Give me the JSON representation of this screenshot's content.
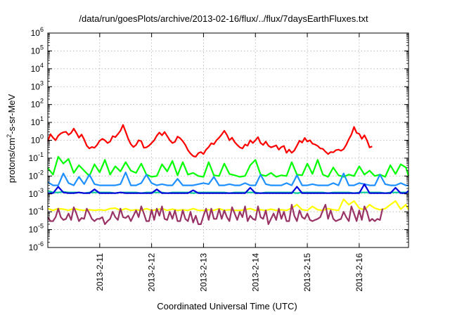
{
  "chart_data": {
    "type": "line",
    "title": "/data/run/goesPlots/archive/2013-02-16/flux/../flux/7daysEarthFluxes.txt",
    "xlabel": "Coordinated Universal Time (UTC)",
    "ylabel": "protons/cm2-s-sr-MeV",
    "ylabel_parts": {
      "before": "protons/cm",
      "superscript": "2",
      "after": "-s-sr-MeV"
    },
    "yscale": "log",
    "ylim": [
      1e-06,
      1000000.0
    ],
    "xlim_days": [
      0,
      6.95
    ],
    "x_ticks": [
      {
        "day": 1,
        "label": "2013-2-11"
      },
      {
        "day": 2,
        "label": "2013-2-12"
      },
      {
        "day": 3,
        "label": "2013-2-13"
      },
      {
        "day": 4,
        "label": "2013-2-14"
      },
      {
        "day": 5,
        "label": "2013-2-15"
      },
      {
        "day": 6,
        "label": "2013-2-16"
      }
    ],
    "y_ticks": [
      {
        "exp": -6,
        "base": "10",
        "sup": "-6"
      },
      {
        "exp": -5,
        "base": "10",
        "sup": "-5"
      },
      {
        "exp": -4,
        "base": "10",
        "sup": "-4"
      },
      {
        "exp": -3,
        "base": "10",
        "sup": "-3"
      },
      {
        "exp": -2,
        "base": "10",
        "sup": "-2"
      },
      {
        "exp": -1,
        "base": "10",
        "sup": "-1"
      },
      {
        "exp": 0,
        "base": "10",
        "sup": "0"
      },
      {
        "exp": 1,
        "base": "10",
        "sup": "1"
      },
      {
        "exp": 2,
        "base": "10",
        "sup": "2"
      },
      {
        "exp": 3,
        "base": "10",
        "sup": "3"
      },
      {
        "exp": 4,
        "base": "10",
        "sup": "4"
      },
      {
        "exp": 5,
        "base": "10",
        "sup": "5"
      },
      {
        "exp": 6,
        "base": "10",
        "sup": "6"
      }
    ],
    "grid": true,
    "series": [
      {
        "color": "#ff0000",
        "x_start": 0,
        "x_step": 0.05,
        "values": [
          0.9,
          2.2,
          1.4,
          1.0,
          1.8,
          2.4,
          2.8,
          3.0,
          2.0,
          2.6,
          4.5,
          2.6,
          1.4,
          2.1,
          1.1,
          0.5,
          0.35,
          0.42,
          0.38,
          0.55,
          0.95,
          1.2,
          1.0,
          0.7,
          0.85,
          1.7,
          1.5,
          2.2,
          3.4,
          7.2,
          3.0,
          1.2,
          0.6,
          0.42,
          0.55,
          1.0,
          0.9,
          0.38,
          0.4,
          0.5,
          0.7,
          1.0,
          1.8,
          2.7,
          1.9,
          2.9,
          1.7,
          1.0,
          0.7,
          0.82,
          1.6,
          1.3,
          0.9,
          0.55,
          0.28,
          0.18,
          0.13,
          0.12,
          0.19,
          0.22,
          0.17,
          0.3,
          0.42,
          0.68,
          0.6,
          1.0,
          1.4,
          2.1,
          3.4,
          2.0,
          1.0,
          1.4,
          0.8,
          0.55,
          0.4,
          0.35,
          0.58,
          0.5,
          1.0,
          0.7,
          1.0,
          1.5,
          0.7,
          0.55,
          0.85,
          0.5,
          0.4,
          0.45,
          0.52,
          0.3,
          0.42,
          0.48,
          0.2,
          0.3,
          0.2,
          0.27,
          0.5,
          0.95,
          0.75,
          1.35,
          0.85,
          1.0,
          0.65,
          0.58,
          0.48,
          0.35,
          0.33,
          0.23,
          0.17,
          0.22,
          0.21,
          0.28,
          0.3,
          0.26,
          0.32,
          0.55,
          1.15,
          2.1,
          5.6,
          2.6,
          2.3,
          1.2,
          1.9,
          1.0,
          0.4,
          0.45
        ]
      },
      {
        "color": "#00ff00",
        "x_start": 0,
        "x_step": 0.1,
        "values": [
          0.028,
          0.012,
          0.12,
          0.05,
          0.09,
          0.015,
          0.04,
          0.02,
          0.01,
          0.045,
          0.016,
          0.08,
          0.012,
          0.035,
          0.018,
          0.06,
          0.02,
          0.015,
          0.05,
          0.012,
          0.009,
          0.01,
          0.045,
          0.018,
          0.07,
          0.011,
          0.06,
          0.012,
          0.015,
          0.01,
          0.009,
          0.06,
          0.011,
          0.01,
          0.05,
          0.013,
          0.011,
          0.009,
          0.01,
          0.04,
          0.08,
          0.012,
          0.01,
          0.015,
          0.009,
          0.011,
          0.01,
          0.06,
          0.012,
          0.011,
          0.05,
          0.013,
          0.08,
          0.012,
          0.009,
          0.03,
          0.011,
          0.009,
          0.012,
          0.01,
          0.035,
          0.012,
          0.02,
          0.01,
          0.012,
          0.009,
          0.04,
          0.013,
          0.045,
          0.03,
          0.01
        ]
      },
      {
        "color": "#1e90ff",
        "x_start": 0,
        "x_step": 0.1,
        "values": [
          0.0045,
          0.003,
          0.003,
          0.014,
          0.004,
          0.003,
          0.009,
          0.0035,
          0.012,
          0.0035,
          0.003,
          0.003,
          0.003,
          0.003,
          0.0035,
          0.016,
          0.003,
          0.003,
          0.004,
          0.012,
          0.004,
          0.003,
          0.0035,
          0.003,
          0.003,
          0.007,
          0.003,
          0.003,
          0.003,
          0.0035,
          0.004,
          0.0035,
          0.009,
          0.003,
          0.003,
          0.0035,
          0.003,
          0.003,
          0.004,
          0.003,
          0.003,
          0.012,
          0.0035,
          0.003,
          0.003,
          0.003,
          0.004,
          0.003,
          0.011,
          0.003,
          0.003,
          0.0035,
          0.003,
          0.003,
          0.003,
          0.004,
          0.003,
          0.014,
          0.003,
          0.003,
          0.004,
          0.0035,
          0.003,
          0.003,
          0.012,
          0.0035,
          0.003,
          0.003,
          0.004,
          0.003,
          0.003
        ]
      },
      {
        "color": "#00cc99",
        "x_start": 0,
        "x_step": 0.1,
        "values": [
          0.0015,
          0.0012,
          0.0012,
          0.0013,
          0.0012,
          0.0012,
          0.0012,
          0.0011,
          0.0012,
          0.0012,
          0.0012,
          0.0012,
          0.0012,
          0.0011,
          0.0012,
          0.0012,
          0.0012,
          0.0012,
          0.0011,
          0.0012,
          0.0012,
          0.0012,
          0.0012,
          0.0011,
          0.0012,
          0.0012,
          0.0012,
          0.0012,
          0.0011,
          0.0012,
          0.0012,
          0.0012,
          0.0012,
          0.0012,
          0.0012,
          0.0011,
          0.0012,
          0.0012,
          0.0012,
          0.0012,
          0.0012,
          0.0011,
          0.0012,
          0.0012,
          0.0012,
          0.0012,
          0.0012,
          0.0012,
          0.0011,
          0.0012,
          0.0012,
          0.0012,
          0.0012,
          0.0012,
          0.0011,
          0.0012,
          0.0012,
          0.0012,
          0.0012,
          0.0011,
          0.0012,
          0.0012,
          0.0012,
          0.0012,
          0.0012,
          0.0011,
          0.0012,
          0.0012,
          0.0012,
          0.0012,
          0.0012
        ]
      },
      {
        "color": "#0000dd",
        "x_start": 0,
        "x_step": 0.1,
        "values": [
          0.0011,
          0.0011,
          0.0025,
          0.0012,
          0.0011,
          0.0011,
          0.0012,
          0.0011,
          0.0011,
          0.0018,
          0.0011,
          0.0011,
          0.0011,
          0.0011,
          0.0012,
          0.0011,
          0.0011,
          0.0011,
          0.0011,
          0.0011,
          0.0011,
          0.0018,
          0.0011,
          0.0011,
          0.0011,
          0.0011,
          0.0011,
          0.0011,
          0.0016,
          0.0011,
          0.0011,
          0.0011,
          0.0011,
          0.0011,
          0.0011,
          0.0011,
          0.0011,
          0.0011,
          0.0011,
          0.0022,
          0.0011,
          0.0011,
          0.0011,
          0.0011,
          0.0011,
          0.0011,
          0.0011,
          0.0011,
          0.0025,
          0.0011,
          0.0011,
          0.0011,
          0.0011,
          0.0011,
          0.0011,
          0.0011,
          0.0011,
          0.0011,
          0.0011,
          0.0011,
          0.0011,
          0.0035,
          0.0011,
          0.0011,
          0.0011,
          0.0011,
          0.0011,
          0.0022,
          0.0011,
          0.0011,
          0.0015
        ]
      },
      {
        "color": "#ffff00",
        "x_start": 0,
        "x_step": 0.1,
        "values": [
          0.00015,
          0.00012,
          0.00015,
          0.00014,
          0.00012,
          0.00015,
          0.00013,
          0.00012,
          0.00013,
          0.00012,
          0.00013,
          0.00012,
          0.00015,
          0.00016,
          0.00012,
          0.00015,
          0.00012,
          0.00013,
          0.00012,
          0.00015,
          0.00012,
          0.00013,
          0.00015,
          0.00012,
          0.00014,
          0.00012,
          0.00013,
          0.00012,
          0.00015,
          0.00012,
          0.00012,
          0.00013,
          0.00012,
          0.00015,
          0.00012,
          0.00013,
          0.00012,
          0.00012,
          0.00013,
          0.00015,
          0.00012,
          0.00013,
          0.00012,
          0.00014,
          0.00012,
          0.00013,
          0.00012,
          0.00016,
          0.00025,
          0.00013,
          0.00012,
          0.0002,
          0.00013,
          0.00012,
          0.00015,
          0.00013,
          0.00012,
          0.0005,
          0.00025,
          0.0004,
          0.00016,
          0.00013,
          0.00025,
          0.00016,
          0.00013,
          0.00015,
          0.00025,
          0.0004,
          0.00014,
          0.00025,
          0.00013
        ]
      },
      {
        "color": "#993366",
        "x_start": 0,
        "x_step": 0.05,
        "values": [
          5e-05,
          3e-05,
          3e-05,
          5e-05,
          0.00015,
          5e-05,
          3.5e-05,
          4e-05,
          8e-05,
          3.5e-05,
          0.00018,
          8e-05,
          3e-05,
          4.5e-05,
          4e-05,
          0.00015,
          8e-05,
          4e-05,
          3e-05,
          4e-05,
          4e-05,
          5e-05,
          2e-05,
          3e-05,
          4e-05,
          0.0001,
          5e-05,
          3.5e-05,
          0.00015,
          5e-05,
          4.5e-05,
          6e-05,
          3e-05,
          6e-05,
          0.00012,
          5e-05,
          0.0002,
          8e-05,
          3e-05,
          3e-05,
          0.00013,
          3.5e-05,
          0.00015,
          6e-05,
          0.0002,
          4e-05,
          3.5e-05,
          0.0001,
          4e-05,
          0.00012,
          3e-05,
          3e-05,
          0.00012,
          4e-05,
          3e-05,
          0.0001,
          2.5e-05,
          6e-05,
          2e-05,
          2e-05,
          6e-05,
          0.00015,
          3.5e-05,
          0.00015,
          4e-05,
          4e-05,
          0.00014,
          4e-05,
          0.00012,
          5e-05,
          3e-05,
          0.00018,
          8e-05,
          3.5e-05,
          0.0001,
          5e-05,
          0.0002,
          3e-05,
          6e-05,
          4e-05,
          3.5e-05,
          0.0002,
          5e-05,
          4e-05,
          0.00012,
          2e-05,
          4e-05,
          8e-05,
          3.5e-05,
          0.00015,
          4e-05,
          0.0001,
          3e-05,
          3e-05,
          0.00025,
          6e-05,
          3e-05,
          0.00012,
          5e-05,
          4e-05,
          8e-05,
          3.5e-05,
          3e-05,
          3.5e-05,
          4e-05,
          5e-05,
          0.00012,
          0.00025,
          4e-05,
          0.00012,
          4e-05,
          3e-05,
          3.5e-05,
          4e-05,
          0.0001,
          5e-05,
          3e-05,
          0.0002,
          8e-05,
          3e-05,
          0.00012,
          3.5e-05,
          0.0002,
          0.0001,
          3e-05,
          4e-05,
          3e-05,
          4e-05,
          3.5e-05,
          0.00015
        ]
      }
    ]
  }
}
